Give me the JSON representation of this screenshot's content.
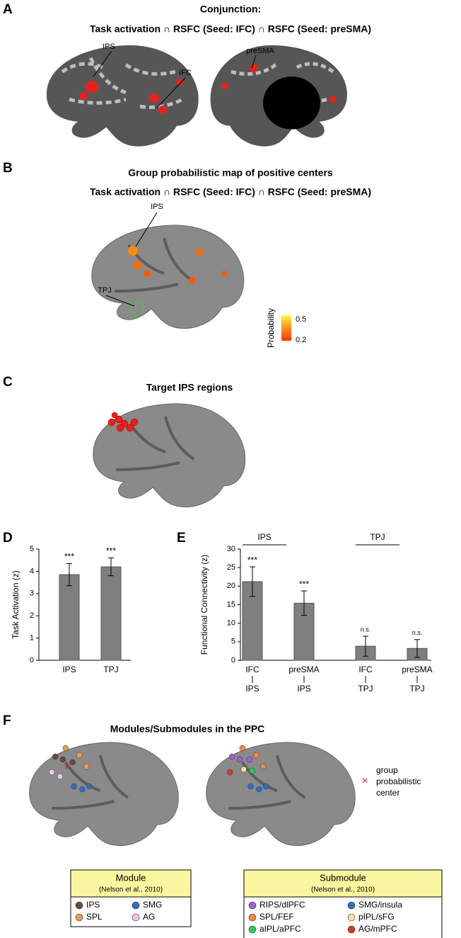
{
  "panels": {
    "a": {
      "letter": "A",
      "title": "Conjunction:",
      "subtitle": "Task activation ∩ RSFC (Seed: IFC) ∩ RSFC (Seed: preSMA)",
      "labels": [
        "IPS",
        "IFC",
        "preSMA"
      ]
    },
    "b": {
      "letter": "B",
      "title": "Group probabilistic map of positive centers",
      "subtitle": "Task activation ∩ RSFC (Seed: IFC) ∩ RSFC (Seed: preSMA)",
      "labels": [
        "IPS",
        "TPJ"
      ],
      "colorbar": {
        "label": "Probability",
        "max": 0.5,
        "min": 0.2
      }
    },
    "c": {
      "letter": "C",
      "title": "Target IPS regions"
    },
    "f": {
      "letter": "F",
      "title": "Modules/Submodules in the PPC",
      "marker_legend": [
        "group",
        "probabilistic",
        "center"
      ],
      "module_legend": {
        "title": "Module",
        "source": "(Nelson et al., 2010)",
        "items": [
          {
            "name": "IPS",
            "color": "#6b4a3e"
          },
          {
            "name": "SMG",
            "color": "#2f6fc4"
          },
          {
            "name": "SPL",
            "color": "#ef9a4a"
          },
          {
            "name": "AG",
            "color": "#f2c4ea"
          }
        ]
      },
      "submodule_legend": {
        "title": "Submodule",
        "source": "(Nelson et al., 2010)",
        "items": [
          {
            "name": "RIPS/dlPFC",
            "color": "#a35bd6"
          },
          {
            "name": "SMG/insula",
            "color": "#2f6fc4"
          },
          {
            "name": "SPL/FEF",
            "color": "#ef8a3e"
          },
          {
            "name": "pIPL/sFG",
            "color": "#f6e29a"
          },
          {
            "name": "aIPL/aPFC",
            "color": "#2ec85a"
          },
          {
            "name": "AG/mPFC",
            "color": "#d8352a"
          }
        ]
      }
    }
  },
  "chart_data": [
    {
      "type": "bar",
      "letter": "D",
      "ylabel": "Task Activation (z)",
      "categories": [
        "IPS",
        "TPJ"
      ],
      "values": [
        3.85,
        4.2
      ],
      "errors": [
        0.5,
        0.4
      ],
      "annotations": [
        "***",
        "***"
      ],
      "color": "#7f7f7f",
      "ylim": [
        0,
        5
      ],
      "yticks": [
        0,
        1,
        2,
        3,
        4,
        5
      ]
    },
    {
      "type": "bar",
      "letter": "E",
      "ylabel": "Functional Connectivity (z)",
      "categories": [
        {
          "seed": "IFC",
          "target": "IPS"
        },
        {
          "seed": "preSMA",
          "target": "IPS"
        },
        {
          "seed": "IFC",
          "target": "TPJ"
        },
        {
          "seed": "preSMA",
          "target": "TPJ"
        }
      ],
      "groups": [
        "IPS",
        "TPJ"
      ],
      "values": [
        21.2,
        15.4,
        3.8,
        3.2
      ],
      "errors": [
        4.0,
        3.3,
        2.7,
        2.4
      ],
      "annotations": [
        "***",
        "***",
        "n.s.",
        "n.s."
      ],
      "color": "#7f7f7f",
      "ylim": [
        0,
        30
      ],
      "yticks": [
        0,
        5,
        10,
        15,
        20,
        25,
        30
      ]
    }
  ]
}
